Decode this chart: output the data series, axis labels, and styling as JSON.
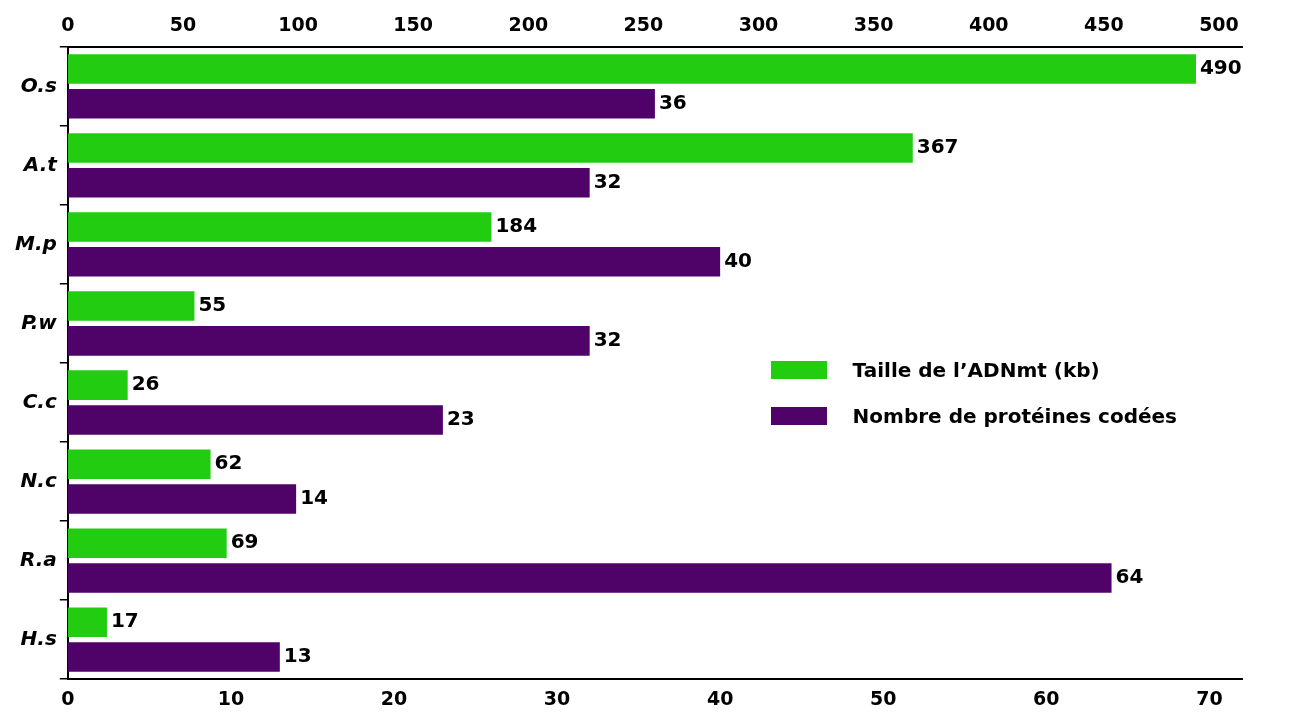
{
  "chart_data": {
    "type": "bar",
    "orientation": "horizontal",
    "categories": [
      "O.s",
      "A.t",
      "M.p",
      "P.w",
      "C.c",
      "N.c",
      "R.a",
      "H.s"
    ],
    "series": [
      {
        "name": "Taille de l’ADNmt (kb)",
        "color": "#22cc11",
        "axis": "x2",
        "values": [
          490,
          367,
          184,
          55,
          26,
          62,
          69,
          17
        ]
      },
      {
        "name": "Nombre de protéines codées",
        "color": "#4f0268",
        "values": [
          36,
          32,
          40,
          32,
          23,
          14,
          64,
          13
        ]
      }
    ],
    "xlim": [
      0,
      72
    ],
    "xticks": [
      0,
      10,
      20,
      30,
      40,
      50,
      60,
      70
    ],
    "x2lim": [
      0,
      510
    ],
    "x2ticks": [
      0,
      50,
      100,
      150,
      200,
      250,
      300,
      350,
      400,
      450,
      500
    ],
    "data_labels": true,
    "grid": false,
    "legend": "right"
  }
}
